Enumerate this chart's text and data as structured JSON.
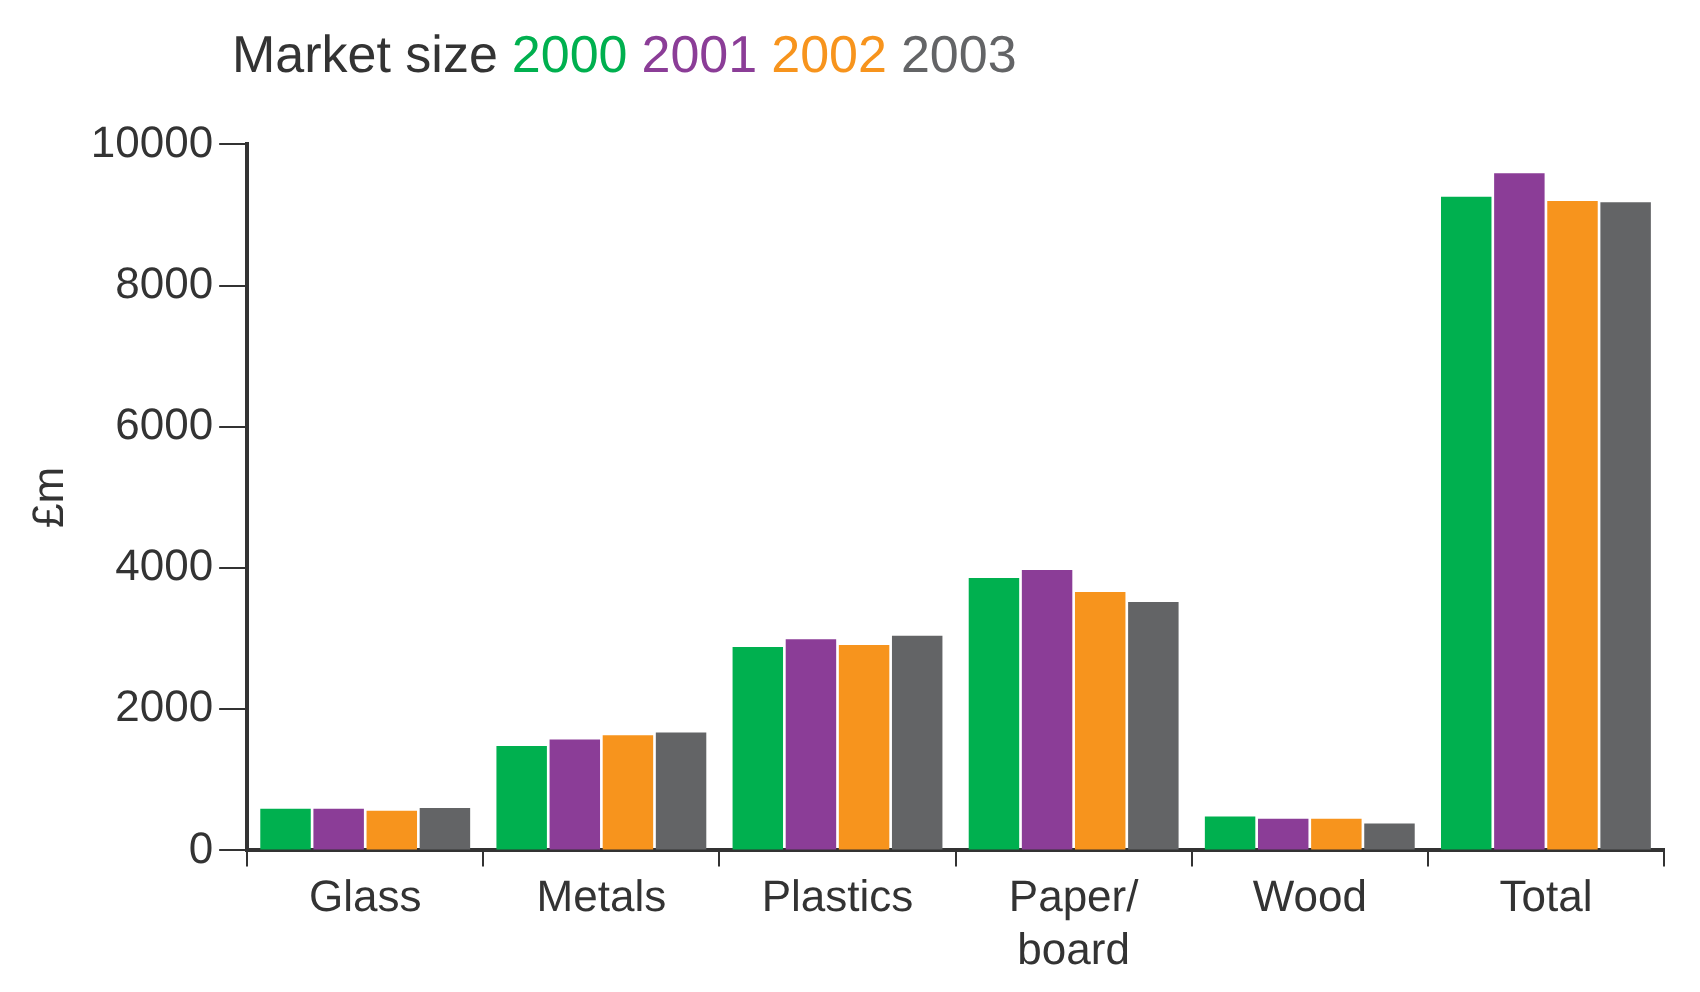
{
  "chart_data": {
    "type": "bar",
    "title": "Market size",
    "ylabel": "£m",
    "categories": [
      "Glass",
      "Metals",
      "Plastics",
      "Paper/board",
      "Wood",
      "Total"
    ],
    "series": [
      {
        "name": "2000",
        "color": "#00b04f",
        "values": [
          590,
          1480,
          2880,
          3860,
          480,
          9260
        ]
      },
      {
        "name": "2001",
        "color": "#8b3d97",
        "values": [
          590,
          1570,
          2990,
          3970,
          450,
          9590
        ]
      },
      {
        "name": "2002",
        "color": "#f7941d",
        "values": [
          560,
          1630,
          2910,
          3660,
          450,
          9200
        ]
      },
      {
        "name": "2003",
        "color": "#636466",
        "values": [
          600,
          1670,
          3040,
          3520,
          380,
          9180
        ]
      }
    ],
    "ylim": [
      0,
      10000
    ],
    "yticks": [
      0,
      2000,
      4000,
      6000,
      8000,
      10000
    ],
    "grid": false,
    "legend": "top left"
  }
}
